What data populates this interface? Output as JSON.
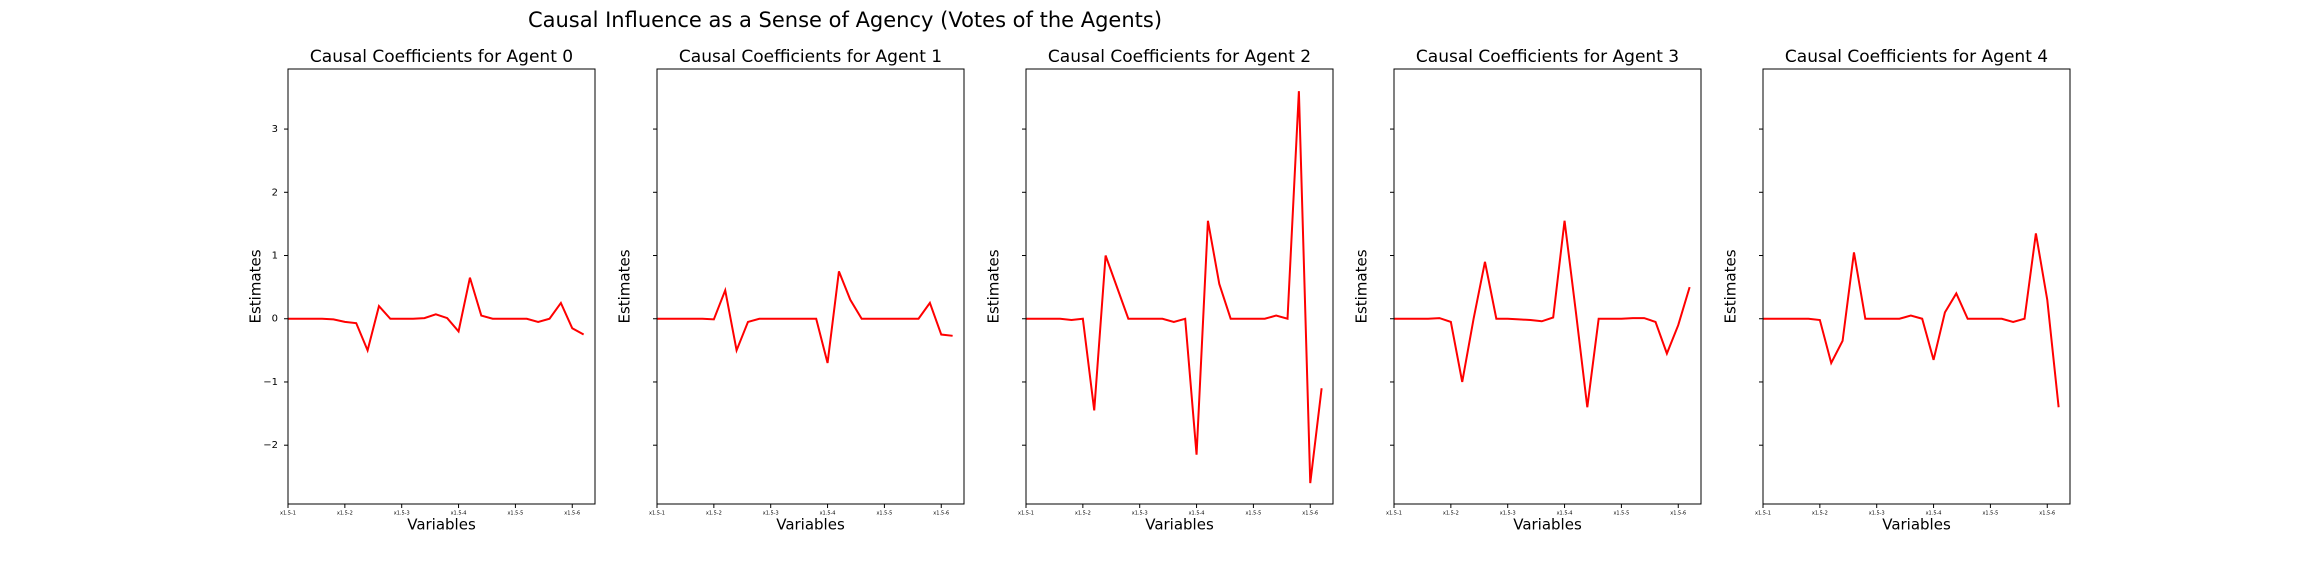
{
  "title": "Causal Influence as a Sense of Agency (Votes of the Agents)",
  "chart_data": [
    {
      "type": "line",
      "title": "Causal Coefficients for Agent 0",
      "xlabel": "Variables",
      "ylabel": "Estimates",
      "x": [
        0,
        1,
        2,
        3,
        4,
        5,
        6,
        7,
        8,
        9,
        10,
        11,
        12,
        13,
        14,
        15,
        16,
        17,
        18,
        19,
        20,
        21,
        22,
        23,
        24,
        25,
        26
      ],
      "series": [
        {
          "color": "#ff0000",
          "values": [
            0,
            0,
            0,
            0,
            -0.01,
            -0.05,
            -0.07,
            -0.5,
            0.2,
            0,
            0,
            0,
            0.01,
            0.07,
            0.01,
            -0.2,
            0.65,
            0.05,
            0,
            0,
            0,
            0,
            -0.05,
            0,
            0.25,
            -0.15,
            -0.25
          ]
        }
      ],
      "xlim": [
        0,
        27
      ],
      "ylim": [
        -2.93,
        3.95
      ],
      "xticks": [
        {
          "value": 0,
          "label": "x1.5-1"
        },
        {
          "value": 5,
          "label": "x1.5-2"
        },
        {
          "value": 10,
          "label": "x1.5-3"
        },
        {
          "value": 15,
          "label": "x1.5-4"
        },
        {
          "value": 20,
          "label": "x1.5-5"
        },
        {
          "value": 25,
          "label": "x1.5-6"
        }
      ],
      "yticks": [
        {
          "value": -2,
          "label": "−2"
        },
        {
          "value": -1,
          "label": "−1"
        },
        0,
        1,
        2,
        3
      ]
    },
    {
      "type": "line",
      "title": "Causal Coefficients for Agent 1",
      "xlabel": "Variables",
      "ylabel": "Estimates",
      "x": [
        0,
        1,
        2,
        3,
        4,
        5,
        6,
        7,
        8,
        9,
        10,
        11,
        12,
        13,
        14,
        15,
        16,
        17,
        18,
        19,
        20,
        21,
        22,
        23,
        24,
        25,
        26
      ],
      "series": [
        {
          "color": "#ff0000",
          "values": [
            0,
            0,
            0,
            0,
            0,
            -0.01,
            0.45,
            -0.5,
            -0.05,
            0,
            0,
            0,
            0,
            0,
            0,
            -0.7,
            0.75,
            0.3,
            0,
            0,
            0,
            0,
            0,
            0,
            0.25,
            -0.25,
            -0.27
          ]
        }
      ],
      "xlim": [
        0,
        27
      ],
      "ylim": [
        -2.93,
        3.95
      ],
      "xticks": [
        {
          "value": 0,
          "label": "x1.5-1"
        },
        {
          "value": 5,
          "label": "x1.5-2"
        },
        {
          "value": 10,
          "label": "x1.5-3"
        },
        {
          "value": 15,
          "label": "x1.5-4"
        },
        {
          "value": 20,
          "label": "x1.5-5"
        },
        {
          "value": 25,
          "label": "x1.5-6"
        }
      ],
      "yticks": [
        -2,
        -1,
        0,
        1,
        2,
        3
      ]
    },
    {
      "type": "line",
      "title": "Causal Coefficients for Agent 2",
      "xlabel": "Variables",
      "ylabel": "Estimates",
      "x": [
        0,
        1,
        2,
        3,
        4,
        5,
        6,
        7,
        8,
        9,
        10,
        11,
        12,
        13,
        14,
        15,
        16,
        17,
        18,
        19,
        20,
        21,
        22,
        23,
        24,
        25,
        26
      ],
      "series": [
        {
          "color": "#ff0000",
          "values": [
            0,
            0,
            0,
            0,
            -0.02,
            0,
            -1.45,
            1.0,
            0.5,
            0,
            0,
            0,
            0,
            -0.05,
            0,
            -2.15,
            1.55,
            0.55,
            0,
            0,
            0,
            0,
            0.05,
            0,
            3.6,
            -2.6,
            -1.1
          ]
        }
      ],
      "xlim": [
        0,
        27
      ],
      "ylim": [
        -2.93,
        3.95
      ],
      "xticks": [
        {
          "value": 0,
          "label": "x1.5-1"
        },
        {
          "value": 5,
          "label": "x1.5-2"
        },
        {
          "value": 10,
          "label": "x1.5-3"
        },
        {
          "value": 15,
          "label": "x1.5-4"
        },
        {
          "value": 20,
          "label": "x1.5-5"
        },
        {
          "value": 25,
          "label": "x1.5-6"
        }
      ],
      "yticks": [
        -2,
        -1,
        0,
        1,
        2,
        3
      ]
    },
    {
      "type": "line",
      "title": "Causal Coefficients for Agent 3",
      "xlabel": "Variables",
      "ylabel": "Estimates",
      "x": [
        0,
        1,
        2,
        3,
        4,
        5,
        6,
        7,
        8,
        9,
        10,
        11,
        12,
        13,
        14,
        15,
        16,
        17,
        18,
        19,
        20,
        21,
        22,
        23,
        24,
        25,
        26
      ],
      "series": [
        {
          "color": "#ff0000",
          "values": [
            0,
            0,
            0,
            0,
            0.01,
            -0.05,
            -1.0,
            0,
            0.9,
            0,
            0,
            -0.01,
            -0.02,
            -0.04,
            0.02,
            1.55,
            0.1,
            -1.4,
            0,
            0,
            0,
            0.01,
            0.01,
            -0.05,
            -0.55,
            -0.1,
            0.5
          ]
        }
      ],
      "xlim": [
        0,
        27
      ],
      "ylim": [
        -2.93,
        3.95
      ],
      "xticks": [
        {
          "value": 0,
          "label": "x1.5-1"
        },
        {
          "value": 5,
          "label": "x1.5-2"
        },
        {
          "value": 10,
          "label": "x1.5-3"
        },
        {
          "value": 15,
          "label": "x1.5-4"
        },
        {
          "value": 20,
          "label": "x1.5-5"
        },
        {
          "value": 25,
          "label": "x1.5-6"
        }
      ],
      "yticks": [
        -2,
        -1,
        0,
        1,
        2,
        3
      ]
    },
    {
      "type": "line",
      "title": "Causal Coefficients for Agent 4",
      "xlabel": "Variables",
      "ylabel": "Estimates",
      "x": [
        0,
        1,
        2,
        3,
        4,
        5,
        6,
        7,
        8,
        9,
        10,
        11,
        12,
        13,
        14,
        15,
        16,
        17,
        18,
        19,
        20,
        21,
        22,
        23,
        24,
        25,
        26
      ],
      "series": [
        {
          "color": "#ff0000",
          "values": [
            0,
            0,
            0,
            0,
            0,
            -0.02,
            -0.7,
            -0.35,
            1.05,
            0,
            0,
            0,
            0,
            0.05,
            0,
            -0.65,
            0.1,
            0.4,
            0,
            0,
            0,
            0,
            -0.05,
            0,
            1.35,
            0.3,
            -1.4
          ]
        }
      ],
      "xlim": [
        0,
        27
      ],
      "ylim": [
        -2.93,
        3.95
      ],
      "xticks": [
        {
          "value": 0,
          "label": "x1.5-1"
        },
        {
          "value": 5,
          "label": "x1.5-2"
        },
        {
          "value": 10,
          "label": "x1.5-3"
        },
        {
          "value": 15,
          "label": "x1.5-4"
        },
        {
          "value": 20,
          "label": "x1.5-5"
        },
        {
          "value": 25,
          "label": "x1.5-6"
        }
      ],
      "yticks": [
        -2,
        -1,
        0,
        1,
        2,
        3
      ]
    }
  ]
}
